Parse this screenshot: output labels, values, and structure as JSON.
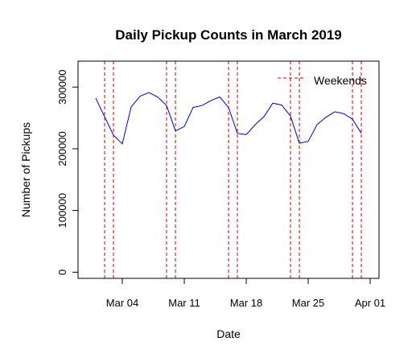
{
  "chart_data": {
    "type": "line",
    "title": "Daily Pickup Counts in March 2019",
    "xlabel": "Date",
    "ylabel": "Number of Pickups",
    "xlim": [
      "2019-02-27",
      "2019-04-02"
    ],
    "ylim": [
      -10000,
      342000
    ],
    "x_ticks": [
      {
        "date": "2019-03-04",
        "label": "Mar 04"
      },
      {
        "date": "2019-03-11",
        "label": "Mar 11"
      },
      {
        "date": "2019-03-18",
        "label": "Mar 18"
      },
      {
        "date": "2019-03-25",
        "label": "Mar 25"
      },
      {
        "date": "2019-04-01",
        "label": "Apr 01"
      }
    ],
    "y_ticks": [
      0,
      100000,
      200000,
      300000
    ],
    "series": [
      {
        "color": "#0000cc",
        "x": [
          "2019-03-01",
          "2019-03-02",
          "2019-03-03",
          "2019-03-04",
          "2019-03-05",
          "2019-03-06",
          "2019-03-07",
          "2019-03-08",
          "2019-03-09",
          "2019-03-10",
          "2019-03-11",
          "2019-03-12",
          "2019-03-13",
          "2019-03-14",
          "2019-03-15",
          "2019-03-16",
          "2019-03-17",
          "2019-03-18",
          "2019-03-19",
          "2019-03-20",
          "2019-03-21",
          "2019-03-22",
          "2019-03-23",
          "2019-03-24",
          "2019-03-25",
          "2019-03-26",
          "2019-03-27",
          "2019-03-28",
          "2019-03-29",
          "2019-03-30",
          "2019-03-31"
        ],
        "y": [
          282000,
          252000,
          222000,
          208000,
          268000,
          285000,
          291000,
          284000,
          270000,
          229000,
          236000,
          267000,
          270000,
          278000,
          284000,
          267000,
          225000,
          223000,
          239000,
          252000,
          274000,
          271000,
          253000,
          209000,
          212000,
          239000,
          251000,
          260000,
          257000,
          248000,
          225000
        ]
      }
    ],
    "weekend_lines": [
      "2019-03-02",
      "2019-03-03",
      "2019-03-09",
      "2019-03-10",
      "2019-03-16",
      "2019-03-17",
      "2019-03-23",
      "2019-03-24",
      "2019-03-30",
      "2019-03-31"
    ],
    "weekend_color": "#cc0000",
    "legend": {
      "label": "Weekends",
      "position": "top-right"
    },
    "grid": false
  }
}
